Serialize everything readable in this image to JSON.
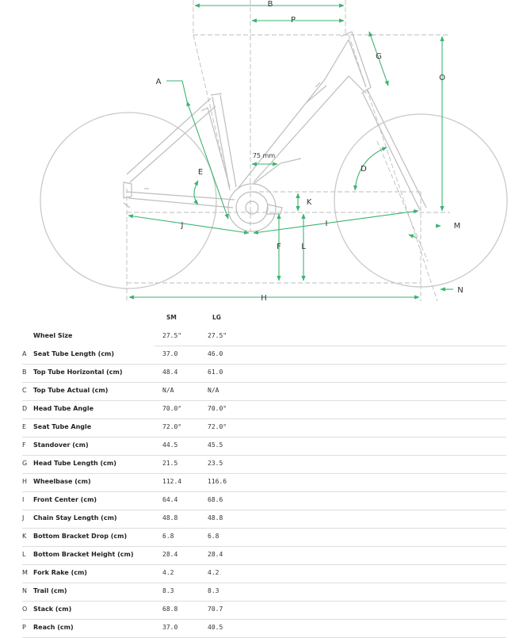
{
  "diagram": {
    "labels": {
      "A": "A",
      "B": "B",
      "P": "P",
      "G": "G",
      "O": "O",
      "D": "D",
      "E": "E",
      "K": "K",
      "J": "J",
      "I": "I",
      "M": "M",
      "F": "F",
      "L": "L",
      "H": "H",
      "N": "N"
    },
    "bb_offset": "75 mm",
    "colors": {
      "dimension": "#3cb371",
      "frame": "#bdbdbd",
      "wheel": "#c9c9c9"
    }
  },
  "table": {
    "headers": {
      "sm": "SM",
      "lg": "LG"
    },
    "rows": [
      {
        "letter": "",
        "name": "Wheel Size",
        "sm": "27.5\"",
        "lg": "27.5\""
      },
      {
        "letter": "A",
        "name": "Seat Tube Length (cm)",
        "sm": "37.0",
        "lg": "46.0"
      },
      {
        "letter": "B",
        "name": "Top Tube Horizontal (cm)",
        "sm": "48.4",
        "lg": "61.0"
      },
      {
        "letter": "C",
        "name": "Top Tube Actual (cm)",
        "sm": "N/A",
        "lg": "N/A"
      },
      {
        "letter": "D",
        "name": "Head Tube Angle",
        "sm": "70.0°",
        "lg": "70.0°"
      },
      {
        "letter": "E",
        "name": "Seat Tube Angle",
        "sm": "72.0°",
        "lg": "72.0°"
      },
      {
        "letter": "F",
        "name": "Standover (cm)",
        "sm": "44.5",
        "lg": "45.5"
      },
      {
        "letter": "G",
        "name": "Head Tube Length (cm)",
        "sm": "21.5",
        "lg": "23.5"
      },
      {
        "letter": "H",
        "name": "Wheelbase (cm)",
        "sm": "112.4",
        "lg": "116.6"
      },
      {
        "letter": "I",
        "name": "Front Center (cm)",
        "sm": "64.4",
        "lg": "68.6"
      },
      {
        "letter": "J",
        "name": "Chain Stay Length (cm)",
        "sm": "48.8",
        "lg": "48.8"
      },
      {
        "letter": "K",
        "name": "Bottom Bracket Drop (cm)",
        "sm": "6.8",
        "lg": "6.8"
      },
      {
        "letter": "L",
        "name": "Bottom Bracket Height (cm)",
        "sm": "28.4",
        "lg": "28.4"
      },
      {
        "letter": "M",
        "name": "Fork Rake (cm)",
        "sm": "4.2",
        "lg": "4.2"
      },
      {
        "letter": "N",
        "name": "Trail (cm)",
        "sm": "8.3",
        "lg": "8.3"
      },
      {
        "letter": "O",
        "name": "Stack (cm)",
        "sm": "68.8",
        "lg": "70.7"
      },
      {
        "letter": "P",
        "name": "Reach (cm)",
        "sm": "37.0",
        "lg": "40.5"
      }
    ]
  }
}
